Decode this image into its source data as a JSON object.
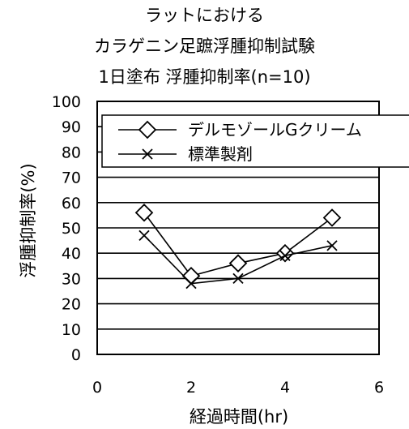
{
  "chart_data": {
    "type": "line",
    "title": [
      "ラットにおける",
      "カラゲニン足蹠浮腫抑制試験",
      "1日塗布 浮腫抑制率(n=10)"
    ],
    "xlabel": "経過時間(hr)",
    "ylabel": "浮腫抑制率(%)",
    "xlim": [
      0,
      6
    ],
    "ylim": [
      0,
      100
    ],
    "x_ticks": [
      "0",
      "2",
      "4",
      "6"
    ],
    "y_ticks": [
      "0",
      "10",
      "20",
      "30",
      "40",
      "50",
      "60",
      "70",
      "80",
      "90",
      "100"
    ],
    "grid": "horizontal",
    "legend_position": "top-right",
    "series": [
      {
        "name": "デルモゾールGクリーム",
        "marker": "diamond",
        "x": [
          1,
          2,
          3,
          4,
          5
        ],
        "y": [
          56,
          31,
          36,
          40,
          54
        ]
      },
      {
        "name": "標準製剤",
        "marker": "x",
        "x": [
          1,
          2,
          3,
          4,
          5
        ],
        "y": [
          47,
          28,
          30,
          39,
          43
        ]
      }
    ]
  }
}
